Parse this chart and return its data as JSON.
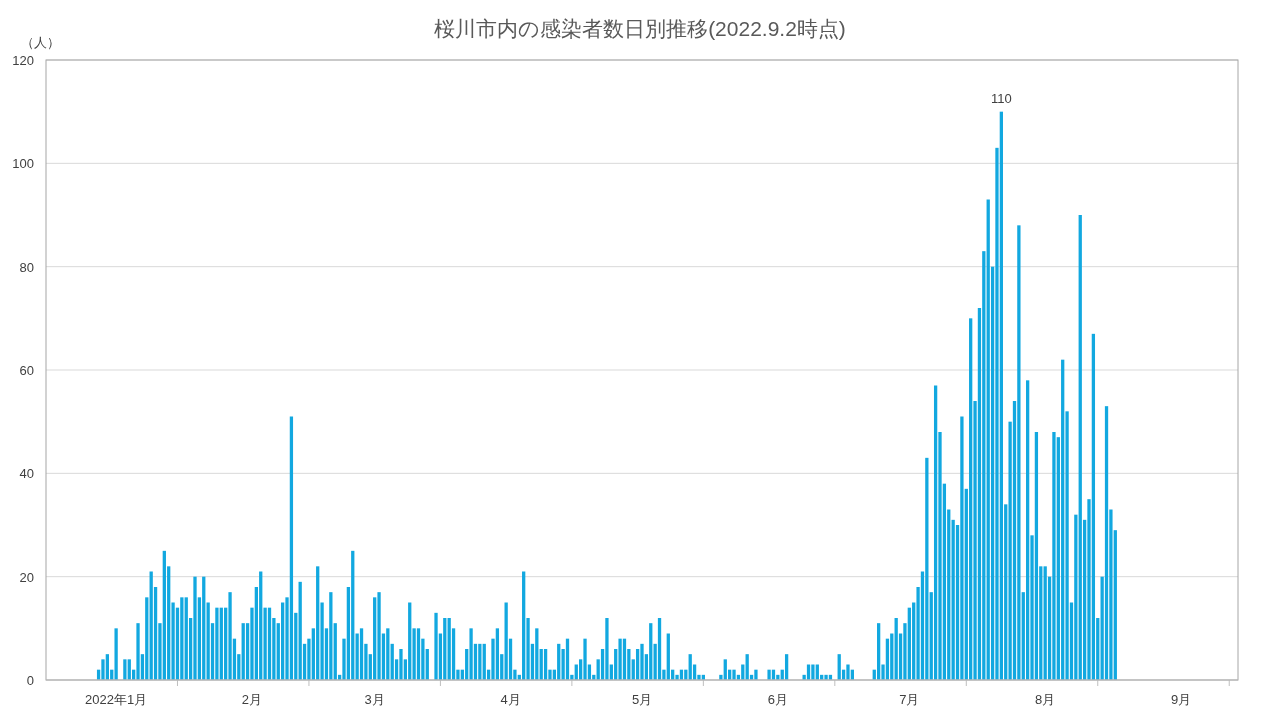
{
  "chart_data": {
    "type": "bar",
    "title": "桜川市内の感染者数日別推移(2022.9.2時点)",
    "ylabel": "（人）",
    "x": [
      "2021-12-28",
      "2021-12-29",
      "2021-12-30",
      "2021-12-31",
      "2022-01-01",
      "2022-01-02",
      "2022-01-03",
      "2022-01-04",
      "2022-01-05",
      "2022-01-06",
      "2022-01-07",
      "2022-01-08",
      "2022-01-09",
      "2022-01-10",
      "2022-01-11",
      "2022-01-12",
      "2022-01-13",
      "2022-01-14",
      "2022-01-15",
      "2022-01-16",
      "2022-01-17",
      "2022-01-18",
      "2022-01-19",
      "2022-01-20",
      "2022-01-21",
      "2022-01-22",
      "2022-01-23",
      "2022-01-24",
      "2022-01-25",
      "2022-01-26",
      "2022-01-27",
      "2022-01-28",
      "2022-01-29",
      "2022-01-30",
      "2022-01-31",
      "2022-02-01",
      "2022-02-02",
      "2022-02-03",
      "2022-02-04",
      "2022-02-05",
      "2022-02-06",
      "2022-02-07",
      "2022-02-08",
      "2022-02-09",
      "2022-02-10",
      "2022-02-11",
      "2022-02-12",
      "2022-02-13",
      "2022-02-14",
      "2022-02-15",
      "2022-02-16",
      "2022-02-17",
      "2022-02-18",
      "2022-02-19",
      "2022-02-20",
      "2022-02-21",
      "2022-02-22",
      "2022-02-23",
      "2022-02-24",
      "2022-02-25",
      "2022-02-26",
      "2022-02-27",
      "2022-02-28",
      "2022-03-01",
      "2022-03-02",
      "2022-03-03",
      "2022-03-04",
      "2022-03-05",
      "2022-03-06",
      "2022-03-07",
      "2022-03-08",
      "2022-03-09",
      "2022-03-10",
      "2022-03-11",
      "2022-03-12",
      "2022-03-13",
      "2022-03-14",
      "2022-03-15",
      "2022-03-16",
      "2022-03-17",
      "2022-03-18",
      "2022-03-19",
      "2022-03-20",
      "2022-03-21",
      "2022-03-22",
      "2022-03-23",
      "2022-03-24",
      "2022-03-25",
      "2022-03-26",
      "2022-03-27",
      "2022-03-28",
      "2022-03-29",
      "2022-03-30",
      "2022-03-31",
      "2022-04-01",
      "2022-04-02",
      "2022-04-03",
      "2022-04-04",
      "2022-04-05",
      "2022-04-06",
      "2022-04-07",
      "2022-04-08",
      "2022-04-09",
      "2022-04-10",
      "2022-04-11",
      "2022-04-12",
      "2022-04-13",
      "2022-04-14",
      "2022-04-15",
      "2022-04-16",
      "2022-04-17",
      "2022-04-18",
      "2022-04-19",
      "2022-04-20",
      "2022-04-21",
      "2022-04-22",
      "2022-04-23",
      "2022-04-24",
      "2022-04-25",
      "2022-04-26",
      "2022-04-27",
      "2022-04-28",
      "2022-04-29",
      "2022-04-30",
      "2022-05-01",
      "2022-05-02",
      "2022-05-03",
      "2022-05-04",
      "2022-05-05",
      "2022-05-06",
      "2022-05-07",
      "2022-05-08",
      "2022-05-09",
      "2022-05-10",
      "2022-05-11",
      "2022-05-12",
      "2022-05-13",
      "2022-05-14",
      "2022-05-15",
      "2022-05-16",
      "2022-05-17",
      "2022-05-18",
      "2022-05-19",
      "2022-05-20",
      "2022-05-21",
      "2022-05-22",
      "2022-05-23",
      "2022-05-24",
      "2022-05-25",
      "2022-05-26",
      "2022-05-27",
      "2022-05-28",
      "2022-05-29",
      "2022-05-30",
      "2022-05-31",
      "2022-06-01",
      "2022-06-02",
      "2022-06-03",
      "2022-06-04",
      "2022-06-05",
      "2022-06-06",
      "2022-06-07",
      "2022-06-08",
      "2022-06-09",
      "2022-06-10",
      "2022-06-11",
      "2022-06-12",
      "2022-06-13",
      "2022-06-14",
      "2022-06-15",
      "2022-06-16",
      "2022-06-17",
      "2022-06-18",
      "2022-06-19",
      "2022-06-20",
      "2022-06-21",
      "2022-06-22",
      "2022-06-23",
      "2022-06-24",
      "2022-06-25",
      "2022-06-26",
      "2022-06-27",
      "2022-06-28",
      "2022-06-29",
      "2022-06-30",
      "2022-07-01",
      "2022-07-02",
      "2022-07-03",
      "2022-07-04",
      "2022-07-05",
      "2022-07-06",
      "2022-07-07",
      "2022-07-08",
      "2022-07-09",
      "2022-07-10",
      "2022-07-11",
      "2022-07-12",
      "2022-07-13",
      "2022-07-14",
      "2022-07-15",
      "2022-07-16",
      "2022-07-17",
      "2022-07-18",
      "2022-07-19",
      "2022-07-20",
      "2022-07-21",
      "2022-07-22",
      "2022-07-23",
      "2022-07-24",
      "2022-07-25",
      "2022-07-26",
      "2022-07-27",
      "2022-07-28",
      "2022-07-29",
      "2022-07-30",
      "2022-07-31",
      "2022-08-01",
      "2022-08-02",
      "2022-08-03",
      "2022-08-04",
      "2022-08-05",
      "2022-08-06",
      "2022-08-07",
      "2022-08-08",
      "2022-08-09",
      "2022-08-10",
      "2022-08-11",
      "2022-08-12",
      "2022-08-13",
      "2022-08-14",
      "2022-08-15",
      "2022-08-16",
      "2022-08-17"
    ],
    "series": [
      {
        "color": "#12a8e0",
        "values": [
          2,
          4,
          5,
          2,
          10,
          0,
          4,
          4,
          2,
          11,
          5,
          16,
          21,
          18,
          11,
          25,
          22,
          15,
          14,
          16,
          16,
          12,
          20,
          16,
          20,
          15,
          11,
          14,
          14,
          14,
          17,
          8,
          5,
          11,
          11,
          14,
          18,
          21,
          14,
          14,
          12,
          11,
          15,
          16,
          51,
          13,
          19,
          7,
          8,
          10,
          22,
          15,
          10,
          17,
          11,
          1,
          8,
          18,
          25,
          9,
          10,
          7,
          5,
          16,
          17,
          9,
          10,
          7,
          4,
          6,
          4,
          15,
          10,
          10,
          8,
          6,
          0,
          13,
          9,
          12,
          12,
          10,
          2,
          2,
          6,
          10,
          7,
          7,
          7,
          2,
          8,
          10,
          5,
          15,
          8,
          2,
          1,
          21,
          12,
          7,
          10,
          6,
          6,
          2,
          2,
          7,
          6,
          8,
          1,
          3,
          4,
          8,
          3,
          1,
          4,
          6,
          12,
          3,
          6,
          8,
          8,
          6,
          4,
          6,
          7,
          5,
          11,
          7,
          12,
          2,
          9,
          2,
          1,
          2,
          2,
          5,
          3,
          1,
          1,
          0,
          0,
          0,
          1,
          4,
          2,
          2,
          1,
          3,
          5,
          1,
          2,
          0,
          0,
          2,
          2,
          1,
          2,
          5,
          0,
          0,
          0,
          1,
          3,
          3,
          3,
          1,
          1,
          1,
          0,
          5,
          2,
          3,
          2,
          0,
          0,
          0,
          0,
          2,
          11,
          3,
          8,
          9,
          12,
          9,
          11,
          14,
          15,
          18,
          21,
          43,
          17,
          57,
          48,
          38,
          33,
          31,
          30,
          51,
          37,
          70,
          54,
          72,
          83,
          93,
          80,
          103,
          110,
          34,
          50,
          54,
          88,
          17,
          58,
          28,
          48,
          22,
          22,
          20,
          48,
          47,
          62,
          52,
          15,
          32,
          90,
          31,
          35,
          67,
          12,
          20,
          53,
          33,
          29
        ]
      }
    ],
    "xlim": [
      "2021-12-16",
      "2022-09-14"
    ],
    "xticks": [
      {
        "value": "2022-01-01",
        "label": "2022年1月"
      },
      {
        "value": "2022-01-15",
        "label": null
      },
      {
        "value": "2022-02-01",
        "label": "2月"
      },
      {
        "value": "2022-02-14",
        "label": null
      },
      {
        "value": "2022-03-01",
        "label": "3月"
      },
      {
        "value": "2022-03-16",
        "label": null
      },
      {
        "value": "2022-04-01",
        "label": "4月"
      },
      {
        "value": "2022-04-15",
        "label": null
      },
      {
        "value": "2022-05-01",
        "label": "5月"
      },
      {
        "value": "2022-05-15",
        "label": null
      },
      {
        "value": "2022-06-01",
        "label": "6月"
      },
      {
        "value": "2022-06-14",
        "label": null
      },
      {
        "value": "2022-07-01",
        "label": "7月"
      },
      {
        "value": "2022-07-14",
        "label": null
      },
      {
        "value": "2022-08-01",
        "label": "8月"
      },
      {
        "value": "2022-08-13",
        "label": null
      },
      {
        "value": "2022-09-01",
        "label": "9月"
      },
      {
        "value": "2022-09-12",
        "label": null
      }
    ],
    "ylim": [
      0,
      120
    ],
    "yticks": [
      0,
      20,
      40,
      60,
      80,
      100,
      120
    ],
    "grid": "y",
    "annotations": [
      {
        "text": "110",
        "x": "2022-07-22",
        "y": 110
      }
    ]
  }
}
